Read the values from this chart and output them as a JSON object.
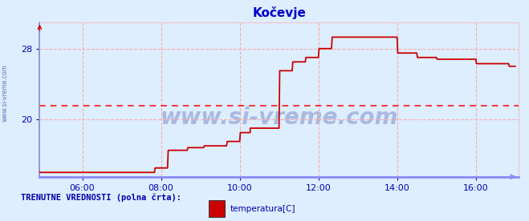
{
  "title": "Kočevje",
  "title_color": "#0000cc",
  "bg_color": "#ddeeff",
  "line_color": "#cc0000",
  "avg_line_color": "#ff0000",
  "avg_value": 21.5,
  "grid_color": "#ffaaaa",
  "axis_left_color": "#8888cc",
  "axis_bottom_color": "#8888ff",
  "tick_color": "#0000aa",
  "watermark": "www.si-vreme.com",
  "watermark_color": "#223399",
  "side_label": "www.si-vreme.com",
  "legend_label": "TRENUTNE VREDNOSTI (polna črta):",
  "temp_label": "temperatura[C]",
  "legend_color": "#0000aa",
  "ylim": [
    13.5,
    31.0
  ],
  "yticks": [
    20,
    28
  ],
  "xlim_start": 295,
  "xlim_end": 1025,
  "xtick_positions": [
    360,
    480,
    600,
    720,
    840,
    960
  ],
  "xtick_labels": [
    "06:00",
    "08:00",
    "10:00",
    "12:00",
    "14:00",
    "16:00"
  ],
  "time_minutes": [
    295,
    470,
    470,
    471,
    471,
    490,
    490,
    491,
    491,
    520,
    520,
    521,
    521,
    545,
    545,
    546,
    546,
    580,
    580,
    581,
    581,
    600,
    600,
    601,
    601,
    615,
    615,
    616,
    616,
    616,
    616,
    660,
    660,
    661,
    661,
    680,
    680,
    681,
    681,
    700,
    700,
    701,
    701,
    720,
    720,
    721,
    721,
    740,
    740,
    741,
    741,
    760,
    760,
    761,
    761,
    840,
    840,
    841,
    841,
    870,
    870,
    871,
    871,
    900,
    900,
    901,
    901,
    960,
    960,
    961,
    961,
    1010,
    1010,
    1011,
    1011,
    1020
  ],
  "temperatures": [
    14.0,
    14.0,
    14.0,
    14.5,
    14.5,
    14.5,
    14.5,
    16.5,
    16.5,
    16.5,
    16.5,
    16.8,
    16.8,
    16.8,
    16.8,
    17.0,
    17.0,
    17.0,
    17.0,
    17.5,
    17.5,
    17.5,
    17.5,
    18.5,
    18.5,
    18.5,
    18.5,
    18.5,
    18.5,
    19.0,
    19.0,
    19.0,
    19.0,
    25.5,
    25.5,
    25.5,
    25.5,
    26.5,
    26.5,
    26.5,
    26.5,
    27.0,
    27.0,
    27.0,
    27.0,
    28.0,
    28.0,
    28.0,
    28.0,
    29.3,
    29.3,
    29.3,
    29.3,
    29.3,
    29.3,
    29.3,
    29.3,
    27.5,
    27.5,
    27.5,
    27.5,
    27.0,
    27.0,
    27.0,
    27.0,
    26.8,
    26.8,
    26.8,
    26.8,
    26.3,
    26.3,
    26.3,
    26.3,
    26.0,
    26.0,
    26.0
  ]
}
